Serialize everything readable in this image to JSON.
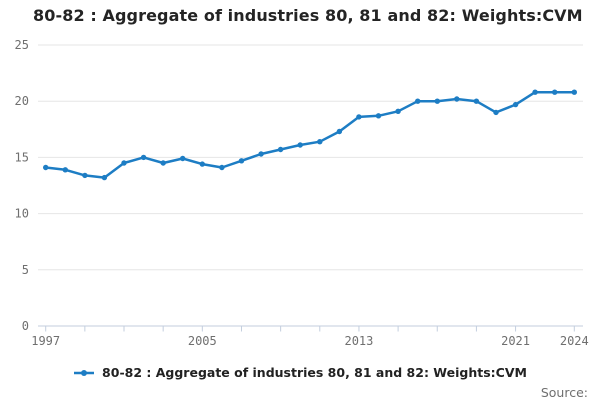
{
  "title": "80-82 : Aggregate of industries 80, 81 and 82: Weights:CVM",
  "legend": {
    "label": "80-82 : Aggregate of industries 80, 81 and 82: Weights:CVM"
  },
  "source_label": "Source:",
  "colors": {
    "series": "#1d7dc4",
    "grid": "#e6e6e6",
    "axis": "#c3cede",
    "tick_label": "#6f6f6f",
    "title_text": "#242424",
    "background": "#ffffff"
  },
  "chart_data": {
    "type": "line",
    "title": "80-82 : Aggregate of industries 80, 81 and 82: Weights:CVM",
    "x": [
      1997,
      1998,
      1999,
      2000,
      2001,
      2002,
      2003,
      2004,
      2005,
      2006,
      2007,
      2008,
      2009,
      2010,
      2011,
      2012,
      2013,
      2014,
      2015,
      2016,
      2017,
      2018,
      2019,
      2020,
      2021,
      2022,
      2023,
      2024
    ],
    "series": [
      {
        "name": "80-82 : Aggregate of industries 80, 81 and 82: Weights:CVM",
        "values": [
          14.1,
          13.9,
          13.4,
          13.2,
          14.5,
          15.0,
          14.5,
          14.9,
          14.4,
          14.1,
          14.7,
          15.3,
          15.7,
          16.1,
          16.4,
          17.3,
          18.6,
          18.7,
          19.1,
          20.0,
          20.0,
          20.2,
          20.0,
          19.0,
          19.7,
          20.8,
          20.8,
          20.8
        ]
      }
    ],
    "xlabel": "",
    "ylabel": "",
    "xlim": [
      1997,
      2024
    ],
    "ylim": [
      0,
      25
    ],
    "yticks": [
      0,
      5,
      10,
      15,
      20,
      25
    ],
    "xtick_marks": [
      1997,
      1999,
      2001,
      2003,
      2005,
      2007,
      2009,
      2011,
      2013,
      2015,
      2017,
      2019,
      2021,
      2024
    ],
    "xtick_labels": [
      "1997",
      "2005",
      "2013",
      "2021",
      "2024"
    ],
    "grid": "horizontal",
    "legend_position": "bottom",
    "marker": "circle"
  }
}
